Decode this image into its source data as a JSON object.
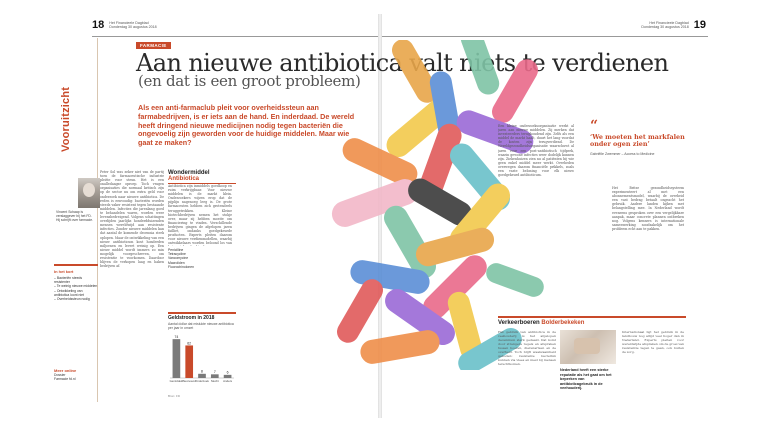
{
  "folio": {
    "left_page_number": "18",
    "left_paper": "Het Financieele Dagblad",
    "left_date": "Donderdag 30 augustus 2018",
    "right_page_number": "19",
    "right_paper": "Het Financieele Dagblad",
    "right_date": "Donderdag 30 augustus 2018"
  },
  "sidebar": {
    "vertical_label": "Vooruitzicht",
    "author_bio": "Vincent Schaap is verslaggever bij het FD. Hij schrijft over farmacie.",
    "box_heading": "In het kort",
    "box_lines": [
      "– Bacteriën steeds resistenter",
      "– Te weinig nieuwe middelen",
      "– Ontwikkeling van antibiotica loont niet",
      "– Overheidssteun nodig"
    ],
    "foot_heading": "Meer online",
    "foot_lines": [
      "Dossier",
      "Farmacie fd.nl"
    ]
  },
  "article": {
    "section_tag": "FARMACIE",
    "headline": "Aan nieuwe antibiotica valt niets te verdienen",
    "subheadline": "(en dat is een groot probleem)",
    "intro": "Als een anti-farmaclub pleit voor overheidssteun aan farmabedrijven, is er iets aan de hand. En inderdaad. De wereld heeft dringend nieuwe medicijnen nodig tegen bacteriën die ongevoelig zijn geworden voor de huidige middelen. Maar wie gaat ze maken?",
    "body_col1": "Peter Sol was zeker niet van de partij toen de farmaceutische industrie pleitte voor steun. Het is een onalledaagse oproep. Toch vragen organisaties die normaal kritisch zijn op de sector nu om extra geld voor onderzoek naar nieuwe antibiotica. De reden is eenvoudig: bacteriën worden steeds vaker resistent tegen bestaande middelen. Infecties die jarenlang goed te behandelen waren, worden weer levensbedreigend. Volgens schattingen overlijden jaarlijks honderdduizenden mensen wereldwijd aan resistente infecties. Zonder nieuwe middelen kan dat aantal de komende decennia sterk oplopen. Maar de ontwikkeling van een nieuw antibioticum kost honderden miljoenen en levert weinig op. Een nieuw middel wordt immers zo min mogelijk voorgeschreven, om resistentie te voorkomen. Daardoor blijven de verkopen laag en haken bedrijven af.",
    "body_col2": "Antibiotica zijn inmiddels goedkoop en ruim verkrijgbaar. Voor nieuwe middelen is de markt klein. Onderzoekers wijzen erop dat de pijplijn nagenoeg leeg is. De grote farmaceuten hebben zich grotendeels teruggetrokken. Kleine biotechbedrijven nemen het stokje over, maar zij hebben moeite om financiering te vinden. Verschillende bedrijven gingen de afgelopen jaren failliet, ondanks goedgekeurde producten. Experts pleiten daarom voor nieuwe verdienmodellen, waarbij ontwikkelaars worden beloond los van het aantal verkochte doses.",
    "box_title": "Wondermiddel",
    "box_title_accent": "Antibiotica",
    "box_list": [
      "Penicilline",
      "Tetracycline",
      "Vancomycine",
      "Macroliden",
      "Fluorochinolonen"
    ]
  },
  "chart_data": {
    "type": "bar",
    "title": "Geldstroom in 2018",
    "subtitle": "Aantal dollar dat mislukte nieuwe antibiotica per jaar in omzet",
    "ylabel": "",
    "categories": [
      "Gemiddeld",
      "Succesvol",
      "Onderzoek",
      "Slecht",
      "Anders"
    ],
    "values": [
      74,
      62,
      8,
      7,
      6
    ],
    "data_labels": [
      "74",
      "62",
      "8",
      "7",
      "6"
    ],
    "colors": [
      "#7a7a7a",
      "#c94a2a",
      "#7a7a7a",
      "#7a7a7a",
      "#7a7a7a"
    ],
    "ylim": [
      0,
      80
    ],
    "source": "Bron: FD"
  },
  "right": {
    "body": "Een kleine onderzoeksorganisatie werkt al jaren aan nieuwe middelen. Zij merken dat investeerders terughoudend zijn. Zelfs als een middel de markt haalt, duurt het lang voordat de kosten zijn terugverdiend. De Wereldgezondheidsorganisatie waarschuwt al jaren voor een post-antibiotisch tijdperk, waarin gewone infecties weer dodelijk kunnen zijn. Ziekenhuizen zien nu al patiënten bij wie geen enkel middel meer werkt. Overheden overwegen daarom financiële prikkels, zoals een vaste beloning voor elk nieuw goedgekeurd antibioticum.",
    "quote": "‘We moeten het markfalen onder ogen zien’",
    "quote_attr": "Gabriëlle Zwemmer – Access to Medicine",
    "body2": "Het Britse gezondheidssysteem experimenteert al met een abonnementsmodel, waarbij de overheid een vast bedrag betaalt ongeacht het gebruik. Andere landen kijken met belangstelling mee. In Nederland wordt eveneens gesproken over een vergelijkbare aanpak, maar concrete plannen ontbreken nog. Volgens kenners is internationale samenwerking noodzakelijk om het probleem echt aan te pakken.",
    "kader_title": "Verkeerboeren",
    "kader_title_accent": "Bolderbekeken",
    "kader_lead": "Nederland heeft een sterke reputatie als het gaat om het beperken van antibioticagebruik in de veehouderij.",
    "kader_col1": "Het gebruik van antibiotica in de veehouderij is het afgelopen decennium sterk gedaald. Dat komt door strengere regels en afspraken tussen boeren, dierenartsen en de overheid. Toch blijft waakzaamheid geboden: resistente bacteriën kunnen via vlees en mest bij mensen terechtkomen.",
    "kader_col2": "Internationaal ligt het gebruik in de landbouw nog altijd veel hoger dan in Nederland. Experts pleiten voor wereldwijde afspraken om de groei van resistentie tegen te gaan, ook buiten de zorg."
  }
}
